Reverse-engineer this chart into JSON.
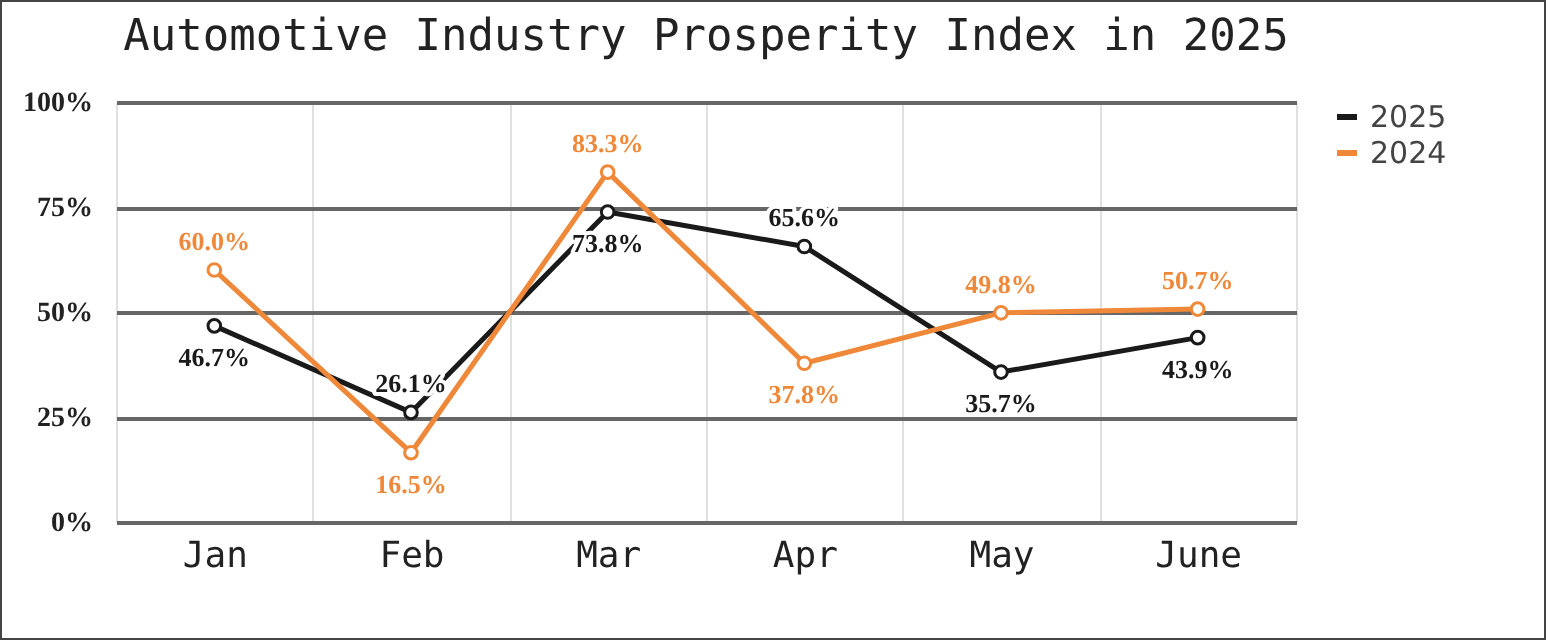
{
  "chart_data": {
    "type": "line",
    "title": "Automotive Industry Prosperity Index in 2025",
    "categories": [
      "Jan",
      "Feb",
      "Mar",
      "Apr",
      "May",
      "June"
    ],
    "series": [
      {
        "name": "2025",
        "color": "#1a1a1a",
        "values": [
          46.7,
          26.1,
          73.8,
          65.6,
          35.7,
          43.9
        ],
        "value_labels": [
          "46.7%",
          "26.1%",
          "73.8%",
          "65.6%",
          "35.7%",
          "43.9%"
        ]
      },
      {
        "name": "2024",
        "color": "#f0883a",
        "values": [
          60.0,
          16.5,
          83.3,
          37.8,
          49.8,
          50.7
        ],
        "value_labels": [
          "60.0%",
          "16.5%",
          "83.3%",
          "37.8%",
          "49.8%",
          "50.7%"
        ]
      }
    ],
    "ylim": [
      0,
      100
    ],
    "yticks": [
      {
        "value": 0,
        "label": "0%"
      },
      {
        "value": 25,
        "label": "25%"
      },
      {
        "value": 50,
        "label": "50%"
      },
      {
        "value": 75,
        "label": "75%"
      },
      {
        "value": 100,
        "label": "100%"
      }
    ],
    "grid": true,
    "legend": "right",
    "marker": "circle",
    "line_style": "solid"
  }
}
